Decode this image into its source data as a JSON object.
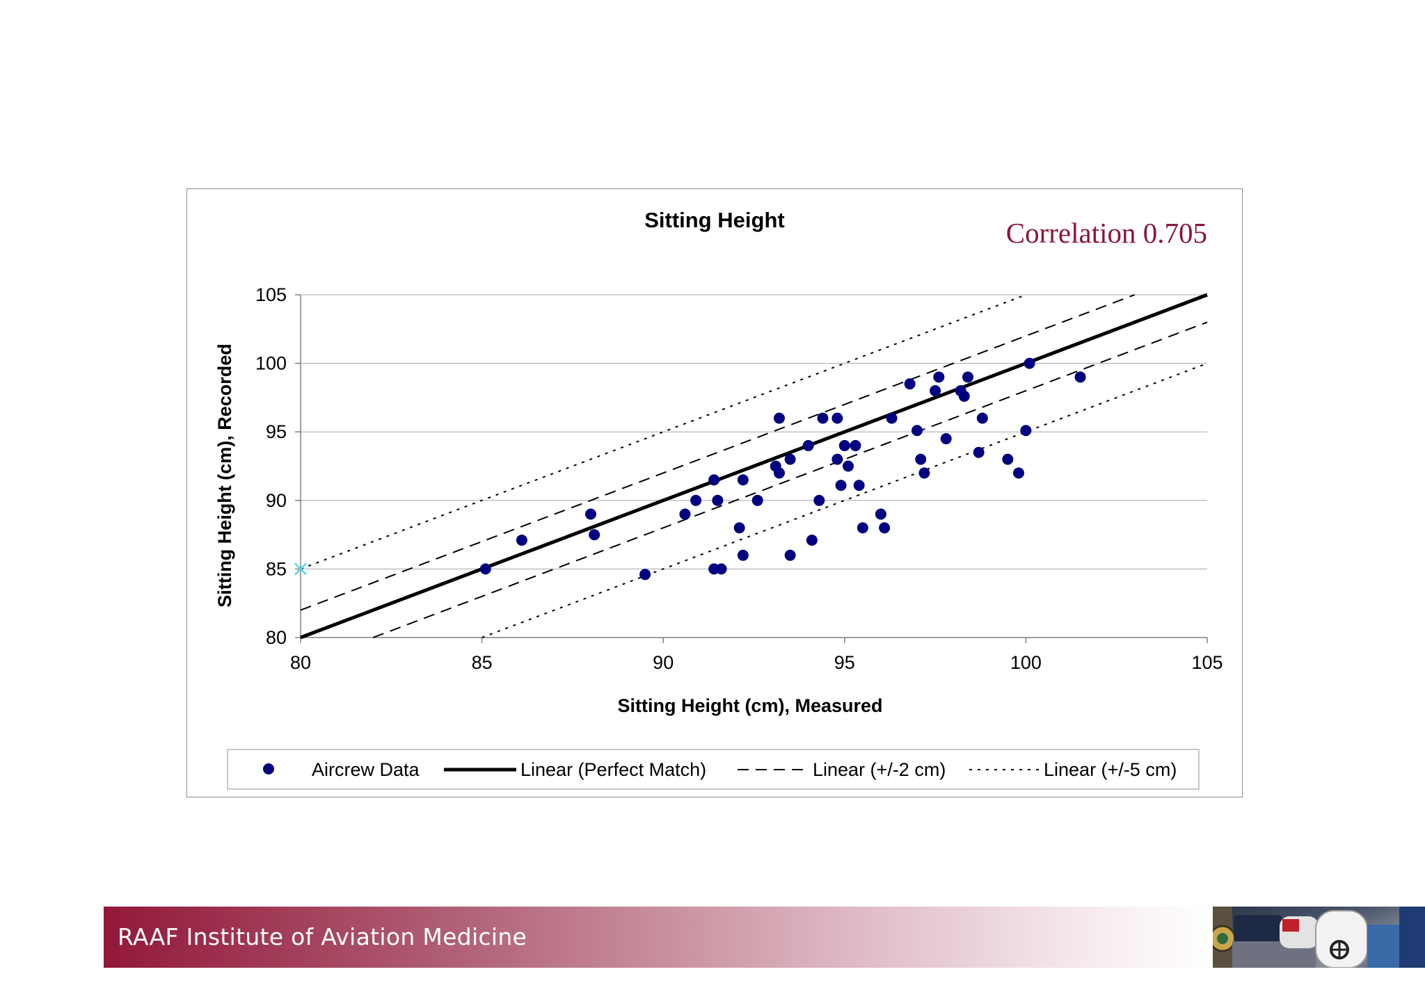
{
  "colors": {
    "point": "#000080",
    "marker": "#4fd9e8",
    "correlation": "#8b1538",
    "footer_text": "#ffffff"
  },
  "annotation": {
    "correlation": "Correlation 0.705"
  },
  "footer": {
    "title": "RAAF Institute of Aviation Medicine"
  },
  "chart_data": {
    "type": "scatter",
    "title": "Sitting Height",
    "xlabel": "Sitting Height (cm), Measured",
    "ylabel": "Sitting Height (cm), Recorded",
    "xlim": [
      80,
      105
    ],
    "ylim": [
      80,
      105
    ],
    "xticks": [
      80,
      85,
      90,
      95,
      100,
      105
    ],
    "yticks": [
      80,
      85,
      90,
      95,
      100,
      105
    ],
    "grid": "horizontal",
    "legend_position": "bottom",
    "series": [
      {
        "name": "Aircrew Data",
        "kind": "scatter",
        "points": [
          [
            85.1,
            85.0
          ],
          [
            86.1,
            87.1
          ],
          [
            88.0,
            89.0
          ],
          [
            88.1,
            87.5
          ],
          [
            89.5,
            84.6
          ],
          [
            90.6,
            89.0
          ],
          [
            90.9,
            90.0
          ],
          [
            91.4,
            91.5
          ],
          [
            91.4,
            85.0
          ],
          [
            91.5,
            90.0
          ],
          [
            91.6,
            85.0
          ],
          [
            92.1,
            88.0
          ],
          [
            92.2,
            91.5
          ],
          [
            92.2,
            86.0
          ],
          [
            92.6,
            90.0
          ],
          [
            93.1,
            92.5
          ],
          [
            93.2,
            96.0
          ],
          [
            93.2,
            92.0
          ],
          [
            93.5,
            93.0
          ],
          [
            93.5,
            86.0
          ],
          [
            94.0,
            94.0
          ],
          [
            94.1,
            87.1
          ],
          [
            94.3,
            90.0
          ],
          [
            94.4,
            96.0
          ],
          [
            94.8,
            96.0
          ],
          [
            94.8,
            93.0
          ],
          [
            94.9,
            91.1
          ],
          [
            95.0,
            94.0
          ],
          [
            95.1,
            92.5
          ],
          [
            95.3,
            94.0
          ],
          [
            95.4,
            91.1
          ],
          [
            95.5,
            88.0
          ],
          [
            96.0,
            89.0
          ],
          [
            96.1,
            88.0
          ],
          [
            96.3,
            96.0
          ],
          [
            96.8,
            98.5
          ],
          [
            97.0,
            95.1
          ],
          [
            97.1,
            93.0
          ],
          [
            97.2,
            92.0
          ],
          [
            97.5,
            98.0
          ],
          [
            97.6,
            99.0
          ],
          [
            97.8,
            94.5
          ],
          [
            98.2,
            98.0
          ],
          [
            98.3,
            97.6
          ],
          [
            98.4,
            99.0
          ],
          [
            98.7,
            93.5
          ],
          [
            98.8,
            96.0
          ],
          [
            99.5,
            93.0
          ],
          [
            99.8,
            92.0
          ],
          [
            100.0,
            95.1
          ],
          [
            100.1,
            100.0
          ],
          [
            101.5,
            99.0
          ]
        ]
      },
      {
        "name": "Linear (Perfect Match)",
        "kind": "line",
        "style": "solid",
        "offset": 0
      },
      {
        "name": "Linear (+/-2 cm)",
        "kind": "line",
        "style": "dashed",
        "offset": 2
      },
      {
        "name": "Linear (+/-5 cm)",
        "kind": "line",
        "style": "dotted",
        "offset": 5
      }
    ],
    "extra_markers": [
      {
        "shape": "x",
        "x": 80,
        "y": 85
      }
    ]
  }
}
